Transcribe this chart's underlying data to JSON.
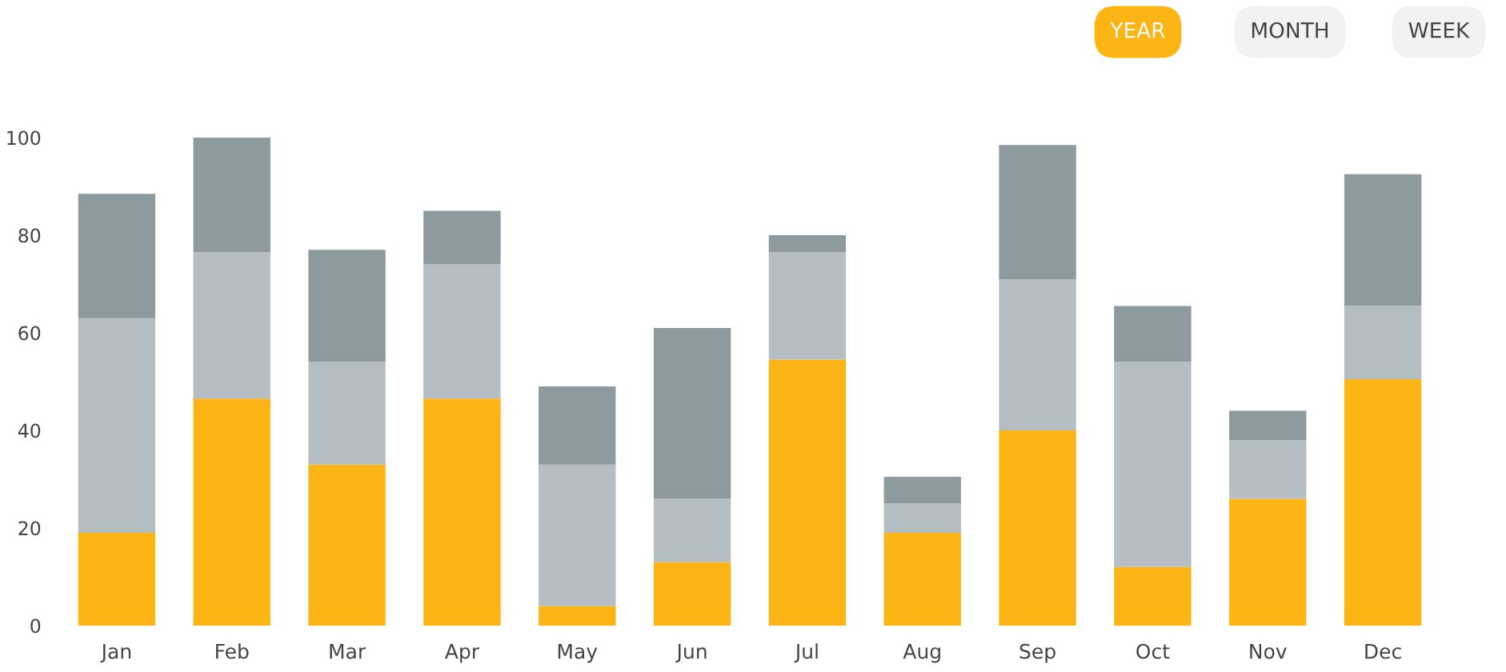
{
  "chart_data": {
    "type": "bar",
    "stacked": true,
    "categories": [
      "Jan",
      "Feb",
      "Mar",
      "Apr",
      "May",
      "Jun",
      "Jul",
      "Aug",
      "Sep",
      "Oct",
      "Nov",
      "Dec"
    ],
    "series": [
      {
        "color": "#fdb515",
        "values": [
          19,
          46.5,
          33,
          46.5,
          4,
          13,
          54.5,
          19,
          40,
          12,
          26,
          50.5
        ]
      },
      {
        "color": "#b4bec3",
        "values": [
          44,
          30,
          21,
          27.5,
          29,
          13,
          22,
          6,
          31,
          42,
          12,
          15
        ]
      },
      {
        "color": "#8d9a9e",
        "values": [
          25.5,
          23.5,
          23,
          11,
          16,
          35,
          3.5,
          5.5,
          27.5,
          11.5,
          6,
          27
        ]
      }
    ],
    "ylim": [
      0,
      100
    ],
    "yticks": [
      0,
      20,
      40,
      60,
      80,
      100
    ],
    "grid": false,
    "legend": false,
    "annotations": [
      "YEAR",
      "MONTH",
      "WEEK"
    ]
  }
}
